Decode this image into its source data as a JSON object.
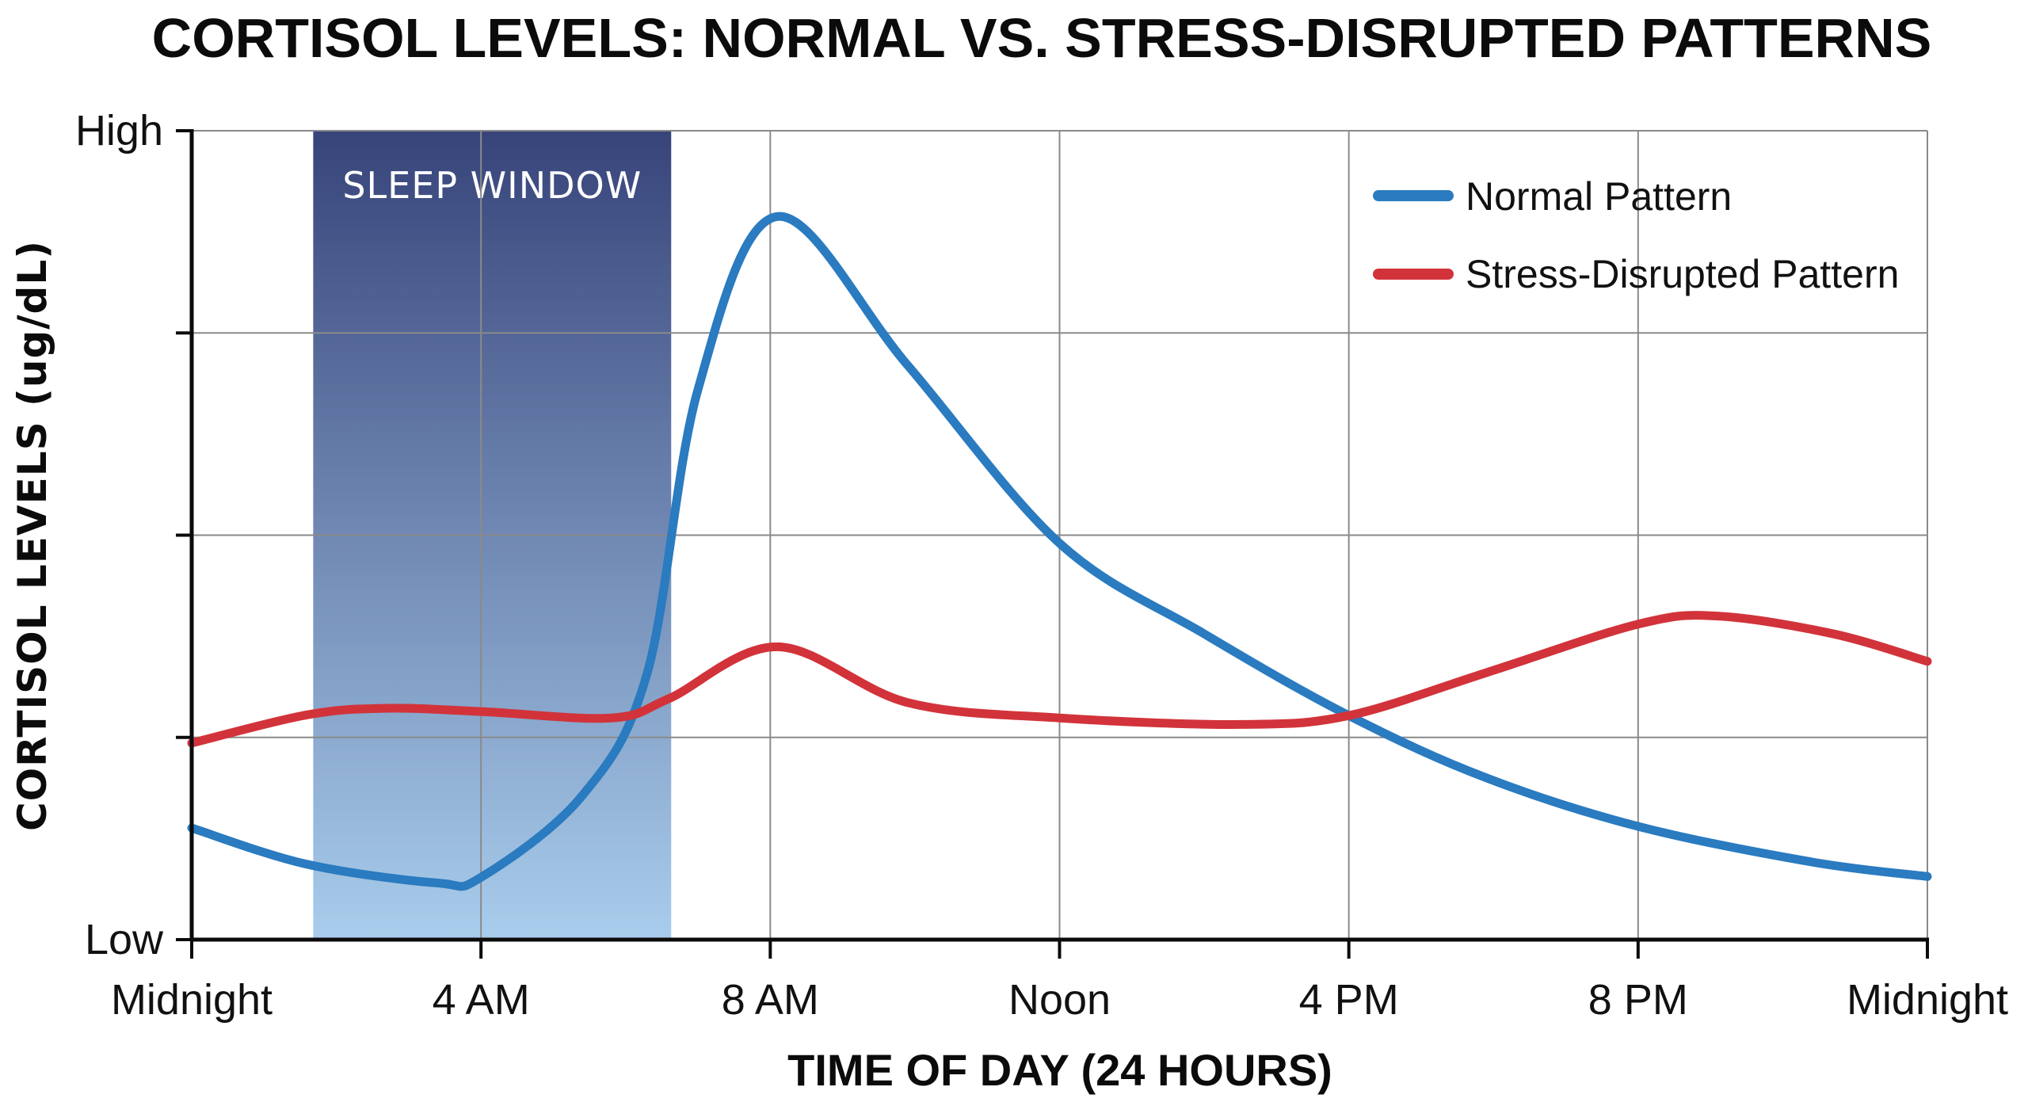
{
  "chart_data": {
    "type": "line",
    "title": "CORTISOL LEVELS: NORMAL VS. STRESS-DISRUPTED PATTERNS",
    "xlabel": "TIME OF DAY (24 HOURS)",
    "ylabel": "CORTISOL LEVELS (ug/dL)",
    "xlim": [
      0,
      24
    ],
    "ylim": [
      0,
      100
    ],
    "x_ticks": [
      {
        "value": 0,
        "label": "Midnight"
      },
      {
        "value": 4,
        "label": "4 AM"
      },
      {
        "value": 8,
        "label": "8 AM"
      },
      {
        "value": 12,
        "label": "Noon"
      },
      {
        "value": 16,
        "label": "4 PM"
      },
      {
        "value": 20,
        "label": "8 PM"
      },
      {
        "value": 24,
        "label": "Midnight"
      }
    ],
    "y_ticks": [
      {
        "value": 0,
        "label": "Low"
      },
      {
        "value": 25,
        "label": ""
      },
      {
        "value": 50,
        "label": ""
      },
      {
        "value": 75,
        "label": ""
      },
      {
        "value": 100,
        "label": "High"
      }
    ],
    "grid": true,
    "legend_position": "top-right",
    "series": [
      {
        "name": "Normal Pattern",
        "color": "#2a7bc0",
        "x": [
          0,
          1.6,
          3.4,
          4,
          5.4,
          6.3,
          7,
          8.1,
          9.9,
          12,
          14,
          16,
          17.9,
          20,
          22.4,
          24
        ],
        "values": [
          13.8,
          9.3,
          7,
          7.7,
          17.8,
          33,
          68,
          89.4,
          71,
          49,
          37.8,
          27.7,
          20,
          14,
          9.6,
          7.8
        ]
      },
      {
        "name": "Stress-Disrupted Pattern",
        "color": "#d2333a",
        "x": [
          0,
          1.6,
          2.7,
          4,
          5.8,
          6.6,
          8.1,
          9.9,
          12,
          14.5,
          16,
          17.9,
          20,
          21.1,
          22.7,
          24
        ],
        "values": [
          24.3,
          27.8,
          28.6,
          28.2,
          27.4,
          29.8,
          36.2,
          29.3,
          27.4,
          26.6,
          27.7,
          33,
          39,
          40,
          37.8,
          34.4
        ]
      }
    ],
    "annotations": [
      {
        "type": "band",
        "label": "SLEEP WINDOW",
        "x_start": 1.68,
        "x_end": 6.63,
        "color_top": "#37447a",
        "color_bottom": "#a9cdec"
      }
    ]
  },
  "colors": {
    "background": "#ffffff",
    "axis": "#0b0b0b",
    "grid": "#8a8a8a",
    "normal": "#2a7bc0",
    "stress": "#d2333a",
    "band_top": "#37447a",
    "band_bottom": "#a9cdec"
  }
}
